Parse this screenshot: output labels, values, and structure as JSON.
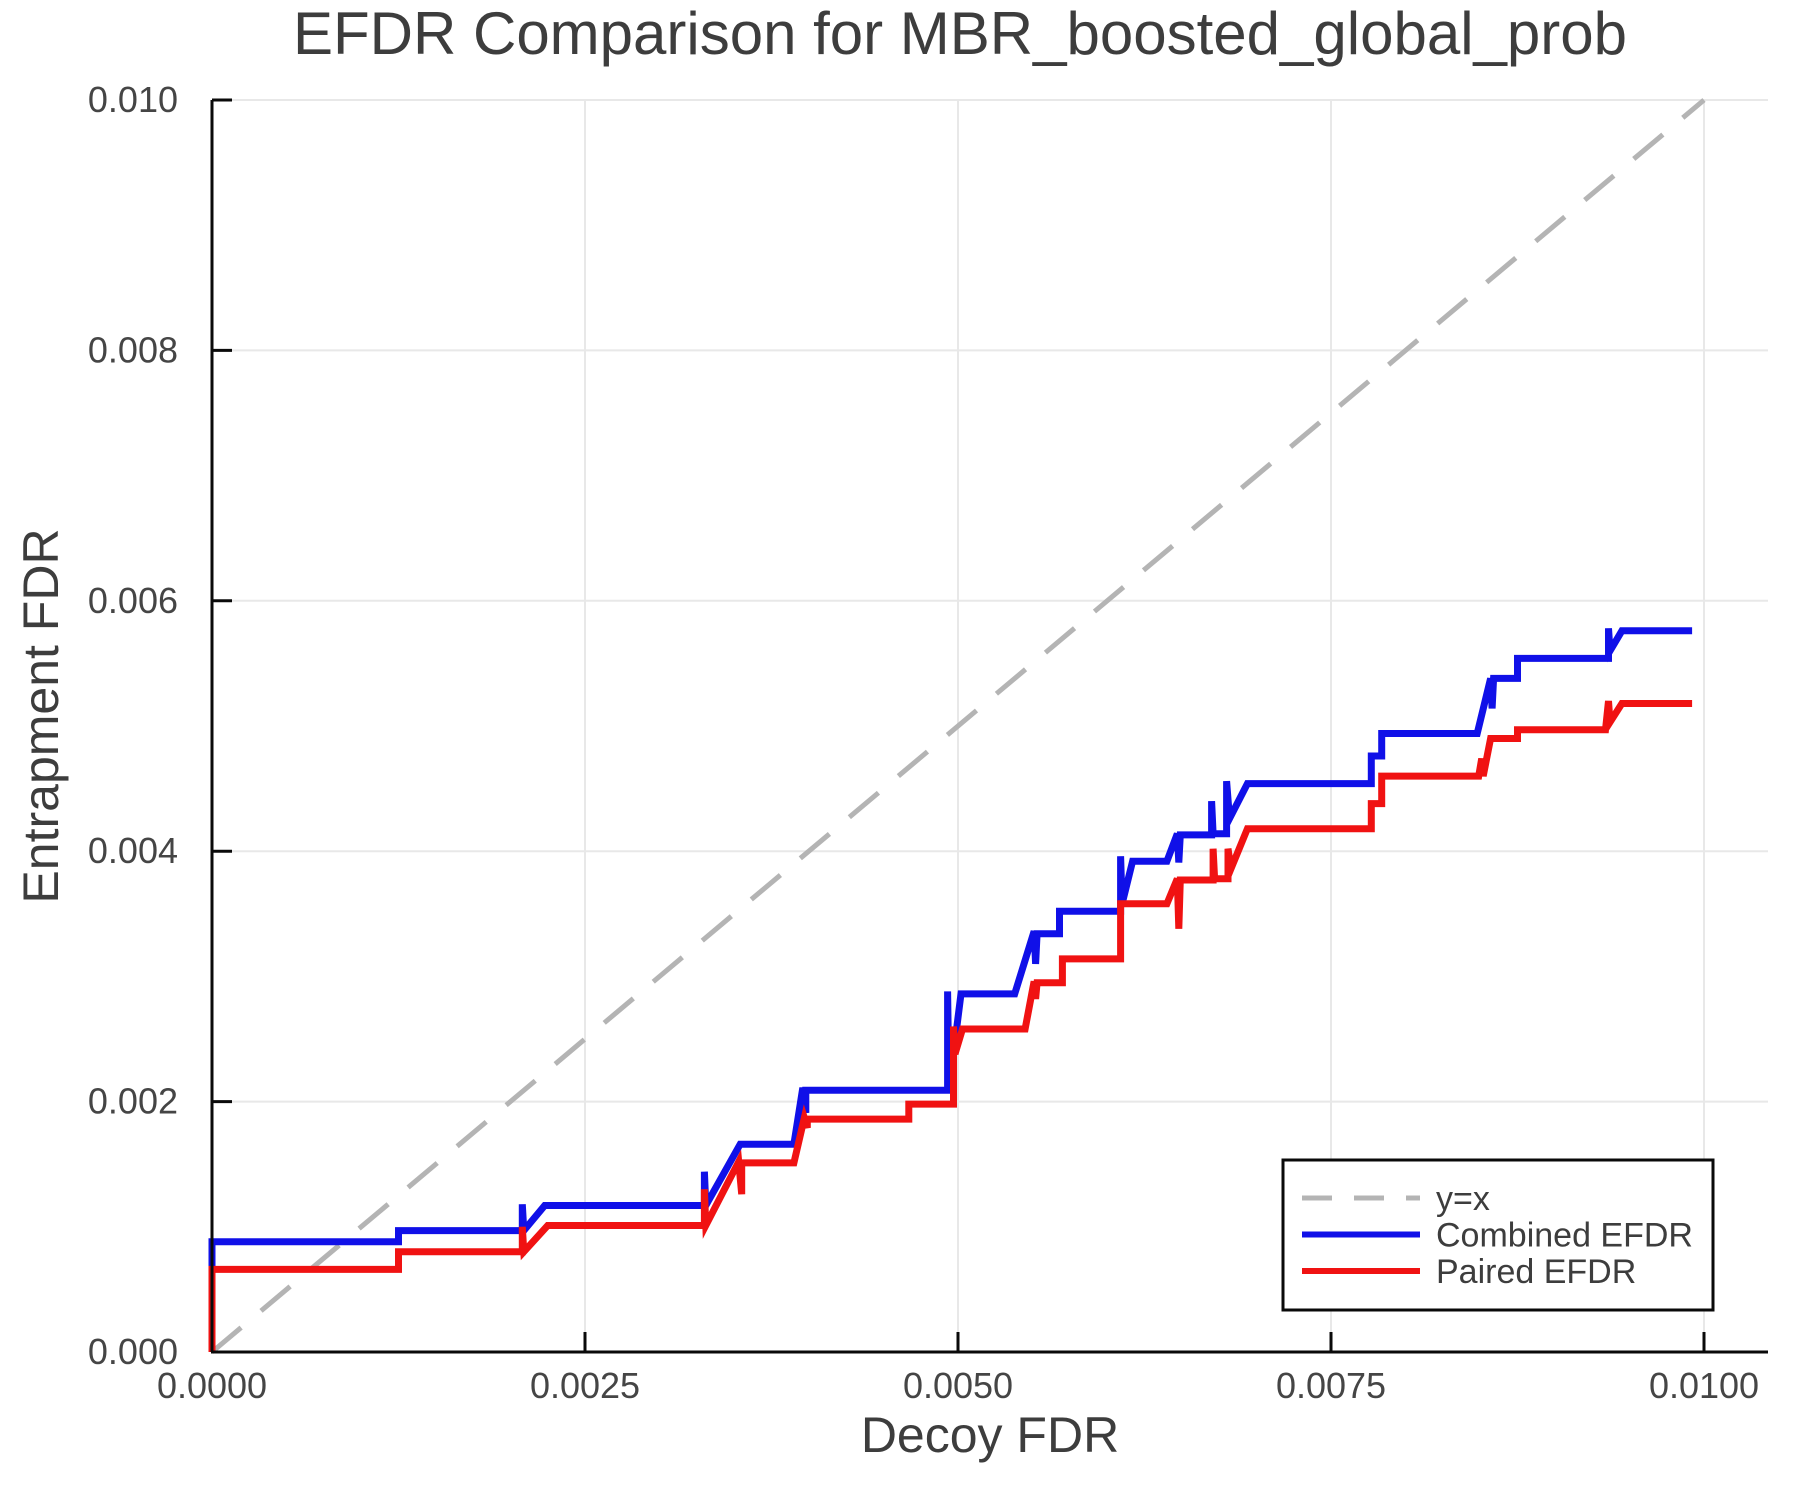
{
  "title": "EFDR Comparison for MBR_boosted_global_prob",
  "x_axis": {
    "label": "Decoy FDR",
    "tick_labels": [
      "0.0000",
      "0.0025",
      "0.0050",
      "0.0075",
      "0.0100"
    ],
    "tick_values": [
      0,
      0.0025,
      0.005,
      0.0075,
      0.01
    ]
  },
  "y_axis": {
    "label": "Entrapment FDR",
    "tick_labels": [
      "0.000",
      "0.002",
      "0.004",
      "0.006",
      "0.008",
      "0.010"
    ],
    "tick_values": [
      0,
      0.002,
      0.004,
      0.006,
      0.008,
      0.01
    ]
  },
  "legend": {
    "items": [
      {
        "label": "y=x",
        "color": "#b4b4b4",
        "dashed": true
      },
      {
        "label": "Combined EFDR",
        "color": "#1010e8",
        "dashed": false
      },
      {
        "label": "Paired EFDR",
        "color": "#f01212",
        "dashed": false
      }
    ]
  },
  "colors": {
    "grid": "#e8e8e8",
    "spine": "#0a0a0a",
    "identity_line": "#b4b4b4",
    "combined": "#1010e8",
    "paired": "#f01212",
    "text": "#3d3d3d",
    "background": "#ffffff"
  },
  "chart_data": {
    "type": "line",
    "title": "EFDR Comparison for MBR_boosted_global_prob",
    "xlabel": "Decoy FDR",
    "ylabel": "Entrapment FDR",
    "xlim": [
      0,
      0.010429
    ],
    "ylim": [
      0,
      0.01
    ],
    "grid": true,
    "legend_position": "lower right",
    "series": [
      {
        "name": "y=x",
        "style": "dashed",
        "color": "#b4b4b4",
        "width": 5,
        "points": [
          [
            0,
            0
          ],
          [
            0.01,
            0.01
          ]
        ]
      },
      {
        "name": "Combined EFDR",
        "style": "solid",
        "color": "#1010e8",
        "width": 7,
        "points": [
          [
            0,
            0
          ],
          [
            0,
            0.00088
          ],
          [
            0.00125,
            0.00088
          ],
          [
            0.00125,
            0.00097
          ],
          [
            0.00208,
            0.00097
          ],
          [
            0.00208,
            0.00118
          ],
          [
            0.00209,
            0.00097
          ],
          [
            0.00223,
            0.00117
          ],
          [
            0.0033,
            0.00117
          ],
          [
            0.0033,
            0.00144
          ],
          [
            0.00331,
            0.00117
          ],
          [
            0.00354,
            0.00166
          ],
          [
            0.0039,
            0.00166
          ],
          [
            0.00396,
            0.00211
          ],
          [
            0.00398,
            0.00191
          ],
          [
            0.00398,
            0.00209
          ],
          [
            0.00493,
            0.00209
          ],
          [
            0.00493,
            0.00288
          ],
          [
            0.00494,
            0.0021
          ],
          [
            0.00502,
            0.00286
          ],
          [
            0.00538,
            0.00286
          ],
          [
            0.00551,
            0.00336
          ],
          [
            0.00552,
            0.0031
          ],
          [
            0.00553,
            0.00334
          ],
          [
            0.00568,
            0.00334
          ],
          [
            0.00568,
            0.00352
          ],
          [
            0.00609,
            0.00352
          ],
          [
            0.00609,
            0.00396
          ],
          [
            0.0061,
            0.00358
          ],
          [
            0.00617,
            0.00392
          ],
          [
            0.0064,
            0.00392
          ],
          [
            0.00647,
            0.00414
          ],
          [
            0.00648,
            0.00391
          ],
          [
            0.00649,
            0.00413
          ],
          [
            0.0067,
            0.00413
          ],
          [
            0.0067,
            0.0044
          ],
          [
            0.00671,
            0.00414
          ],
          [
            0.0068,
            0.00414
          ],
          [
            0.0068,
            0.00456
          ],
          [
            0.00682,
            0.00426
          ],
          [
            0.00694,
            0.00454
          ],
          [
            0.00777,
            0.00454
          ],
          [
            0.00777,
            0.00476
          ],
          [
            0.00784,
            0.00476
          ],
          [
            0.00784,
            0.00494
          ],
          [
            0.00848,
            0.00494
          ],
          [
            0.00857,
            0.00538
          ],
          [
            0.00858,
            0.00514
          ],
          [
            0.00859,
            0.00538
          ],
          [
            0.00875,
            0.00538
          ],
          [
            0.00875,
            0.00554
          ],
          [
            0.00936,
            0.00554
          ],
          [
            0.00936,
            0.00578
          ],
          [
            0.00937,
            0.0056
          ],
          [
            0.00945,
            0.00576
          ],
          [
            0.00992,
            0.00576
          ]
        ]
      },
      {
        "name": "Paired EFDR",
        "style": "solid",
        "color": "#f01212",
        "width": 7,
        "points": [
          [
            0,
            0
          ],
          [
            0,
            0.00066
          ],
          [
            0.00125,
            0.00066
          ],
          [
            0.00125,
            0.0008
          ],
          [
            0.00208,
            0.0008
          ],
          [
            0.00208,
            0.001
          ],
          [
            0.00209,
            0.0008
          ],
          [
            0.00225,
            0.00101
          ],
          [
            0.0033,
            0.00101
          ],
          [
            0.0033,
            0.0013
          ],
          [
            0.00331,
            0.00101
          ],
          [
            0.00353,
            0.00152
          ],
          [
            0.00355,
            0.00126
          ],
          [
            0.00355,
            0.00151
          ],
          [
            0.0039,
            0.00151
          ],
          [
            0.00397,
            0.00187
          ],
          [
            0.00399,
            0.00179
          ],
          [
            0.00399,
            0.00186
          ],
          [
            0.00467,
            0.00186
          ],
          [
            0.00467,
            0.00198
          ],
          [
            0.00497,
            0.00198
          ],
          [
            0.00497,
            0.0026
          ],
          [
            0.00498,
            0.00238
          ],
          [
            0.00503,
            0.00258
          ],
          [
            0.00545,
            0.00258
          ],
          [
            0.00551,
            0.00296
          ],
          [
            0.00552,
            0.00282
          ],
          [
            0.00553,
            0.00295
          ],
          [
            0.0057,
            0.00295
          ],
          [
            0.0057,
            0.00314
          ],
          [
            0.00609,
            0.00314
          ],
          [
            0.00609,
            0.00358
          ],
          [
            0.0064,
            0.00358
          ],
          [
            0.00647,
            0.00378
          ],
          [
            0.00648,
            0.00338
          ],
          [
            0.00649,
            0.00377
          ],
          [
            0.00671,
            0.00377
          ],
          [
            0.00671,
            0.00402
          ],
          [
            0.00672,
            0.00378
          ],
          [
            0.00681,
            0.00378
          ],
          [
            0.00681,
            0.00402
          ],
          [
            0.00683,
            0.00386
          ],
          [
            0.00694,
            0.00418
          ],
          [
            0.00777,
            0.00418
          ],
          [
            0.00777,
            0.00438
          ],
          [
            0.00784,
            0.00438
          ],
          [
            0.00784,
            0.0046
          ],
          [
            0.00849,
            0.0046
          ],
          [
            0.00851,
            0.00474
          ],
          [
            0.00852,
            0.0046
          ],
          [
            0.00857,
            0.0049
          ],
          [
            0.00875,
            0.0049
          ],
          [
            0.00875,
            0.00497
          ],
          [
            0.00934,
            0.00497
          ],
          [
            0.00936,
            0.0052
          ],
          [
            0.00937,
            0.00503
          ],
          [
            0.00945,
            0.00518
          ],
          [
            0.00992,
            0.00518
          ]
        ]
      }
    ]
  }
}
